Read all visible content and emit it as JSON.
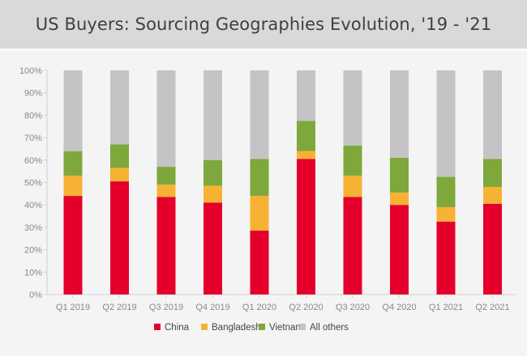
{
  "header": {
    "title": "US Buyers: Sourcing Geographies Evolution, '19 - '21"
  },
  "colors": {
    "China": "#e4002b",
    "Bangladesh": "#f7b234",
    "Vietnam": "#7ea83b",
    "All others": "#c4c4c6"
  },
  "chart_data": {
    "type": "bar",
    "stacked": true,
    "title": "US Buyers: Sourcing Geographies Evolution, '19 - '21",
    "xlabel": "",
    "ylabel": "",
    "ylim": [
      0,
      100
    ],
    "yticks": [
      "0%",
      "10%",
      "20%",
      "30%",
      "40%",
      "50%",
      "60%",
      "70%",
      "80%",
      "90%",
      "100%"
    ],
    "grid": false,
    "legend_position": "bottom",
    "categories": [
      "Q1 2019",
      "Q2 2019",
      "Q3 2019",
      "Q4 2019",
      "Q1 2020",
      "Q2 2020",
      "Q3 2020",
      "Q4 2020",
      "Q1 2021",
      "Q2 2021"
    ],
    "series": [
      {
        "name": "China",
        "values": [
          44,
          50.5,
          43.5,
          41,
          28.5,
          60.5,
          43.5,
          40,
          32.5,
          40.5
        ]
      },
      {
        "name": "Bangladesh",
        "values": [
          9,
          6,
          5.5,
          7.5,
          15.5,
          3.5,
          9.5,
          5.5,
          6.5,
          7.5
        ]
      },
      {
        "name": "Vietnam",
        "values": [
          11,
          10.5,
          8,
          11.5,
          16.5,
          13.5,
          13.5,
          15.5,
          13.5,
          12.5
        ]
      },
      {
        "name": "All others",
        "values": [
          36,
          33,
          43,
          40,
          39.5,
          22.5,
          33.5,
          39,
          47.5,
          39.5
        ]
      }
    ]
  }
}
